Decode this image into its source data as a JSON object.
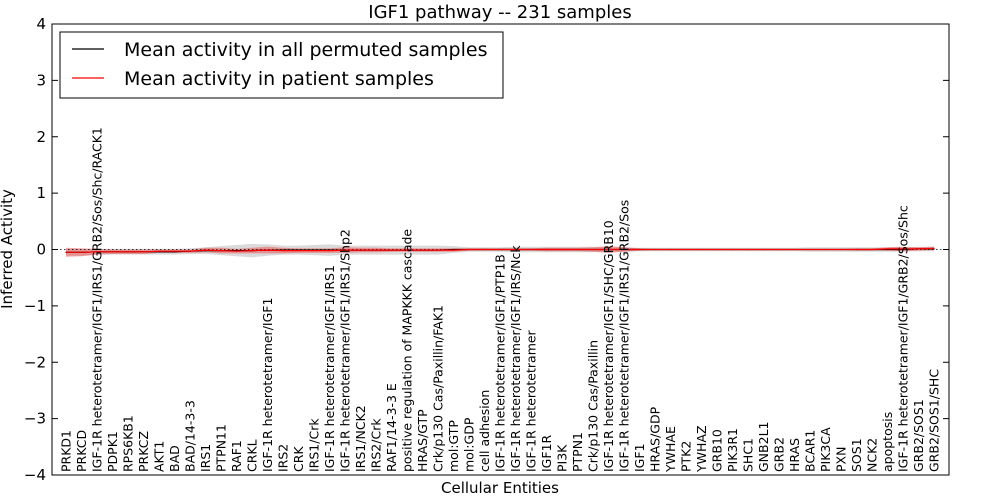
{
  "chart_data": {
    "type": "line",
    "title": "IGF1 pathway -- 231 samples",
    "xlabel": "Cellular Entities",
    "ylabel": "Inferred Activity",
    "ylim": [
      -4,
      4
    ],
    "yticks": [
      "−4",
      "−3",
      "−2",
      "−1",
      "0",
      "1",
      "2",
      "3",
      "4"
    ],
    "legend_position": "top-left",
    "categories": [
      "PRKD1",
      "PRKCD",
      "IGF-1R heterotetramer/IGF1/IRS1/GRB2/Sos/Shc/RACK1",
      "PDPK1",
      "RPS6KB1",
      "PRKCZ",
      "AKT1",
      "BAD",
      "BAD/14-3-3",
      "IRS1",
      "PTPN11",
      "RAF1",
      "CRKL",
      "IGF-1R heterotetramer/IGF1",
      "IRS2",
      "CRK",
      "IRS1/Crk",
      "IGF-1R heterotetramer/IGF1/IRS1",
      "IGF-1R heterotetramer/IGF1/IRS1/Shp2",
      "IRS1/NCK2",
      "IRS2/Crk",
      "RAF1/14-3-3 E",
      "positive regulation of MAPKKK cascade",
      "HRAS/GTP",
      "Crk/p130 Cas/Paxillin/FAK1",
      "mol:GTP",
      "mol:GDP",
      "cell adhesion",
      "IGF-1R heterotetramer/IGF1/PTP1B",
      "IGF-1R heterotetramer/IGF1/IRS/Nck",
      "IGF-1R heterotetramer",
      "IGF1R",
      "PI3K",
      "PTPN1",
      "Crk/p130 Cas/Paxillin",
      "IGF-1R heterotetramer/IGF1/SHC/GRB10",
      "IGF-1R heterotetramer/IGF1/IRS1/GRB2/Sos",
      "IGF1",
      "HRAS/GDP",
      "YWHAE",
      "PTK2",
      "YWHAZ",
      "GRB10",
      "PIK3R1",
      "SHC1",
      "GNB2L1",
      "GRB2",
      "HRAS",
      "BCAR1",
      "PIK3CA",
      "PXN",
      "SOS1",
      "NCK2",
      "apoptosis",
      "IGF-1R heterotetramer/IGF1/GRB2/Sos/Shc",
      "GRB2/SOS1",
      "GRB2/SOS1/SHC"
    ],
    "series": [
      {
        "name": "Mean activity in all permuted samples",
        "color": "#000000",
        "values": [
          -0.05,
          -0.05,
          -0.04,
          -0.04,
          -0.04,
          -0.04,
          -0.04,
          -0.04,
          -0.03,
          -0.02,
          -0.02,
          -0.02,
          -0.02,
          -0.01,
          -0.01,
          -0.01,
          -0.01,
          -0.01,
          -0.01,
          -0.01,
          -0.01,
          -0.01,
          -0.01,
          -0.01,
          -0.01,
          0,
          0,
          0,
          0,
          0,
          0,
          0,
          0,
          0,
          0,
          0,
          0,
          0,
          0,
          0,
          0,
          0,
          0,
          0,
          0,
          0,
          0,
          0,
          0,
          0,
          0,
          0,
          0,
          0,
          0,
          0.01,
          0.01
        ],
        "band": [
          0.06,
          0.06,
          0.05,
          0.05,
          0.05,
          0.05,
          0.05,
          0.05,
          0.05,
          0.06,
          0.08,
          0.1,
          0.12,
          0.1,
          0.08,
          0.08,
          0.09,
          0.1,
          0.08,
          0.08,
          0.08,
          0.08,
          0.08,
          0.08,
          0.08,
          0.06,
          0.04,
          0.04,
          0.04,
          0.05,
          0.05,
          0.05,
          0.05,
          0.05,
          0.05,
          0.04,
          0.04,
          0.03,
          0.03,
          0.03,
          0.03,
          0.03,
          0.03,
          0.03,
          0.03,
          0.03,
          0.03,
          0.03,
          0.04,
          0.04,
          0.04,
          0.04,
          0.04,
          0.04,
          0.04,
          0.04,
          0.04
        ]
      },
      {
        "name": "Mean activity in patient samples",
        "color": "#ff0000",
        "values": [
          -0.05,
          -0.05,
          -0.04,
          -0.04,
          -0.04,
          -0.04,
          -0.03,
          -0.03,
          -0.03,
          -0.01,
          -0.02,
          -0.03,
          -0.02,
          -0.01,
          -0.02,
          -0.02,
          -0.02,
          -0.02,
          -0.01,
          -0.01,
          -0.01,
          -0.01,
          -0.01,
          -0.01,
          -0.01,
          -0.01,
          0,
          0,
          0,
          0,
          0,
          0,
          0,
          0,
          0,
          0,
          0,
          0,
          0,
          0,
          0,
          0,
          0,
          0,
          0,
          0,
          0,
          0,
          0,
          0,
          0,
          0,
          0,
          0.01,
          0.01,
          0.01,
          0.02
        ],
        "band": [
          0.08,
          0.07,
          0.05,
          0.04,
          0.04,
          0.04,
          0.03,
          0.03,
          0.03,
          0.04,
          0.05,
          0.04,
          0.05,
          0.06,
          0.05,
          0.04,
          0.04,
          0.04,
          0.05,
          0.04,
          0.04,
          0.03,
          0.03,
          0.03,
          0.03,
          0.03,
          0.02,
          0.02,
          0.02,
          0.02,
          0.02,
          0.03,
          0.03,
          0.03,
          0.04,
          0.06,
          0.04,
          0.02,
          0.01,
          0.01,
          0.01,
          0.01,
          0.01,
          0.01,
          0.01,
          0.01,
          0.01,
          0.01,
          0.01,
          0.01,
          0.01,
          0.02,
          0.02,
          0.03,
          0.04,
          0.03,
          0.03
        ]
      }
    ]
  }
}
